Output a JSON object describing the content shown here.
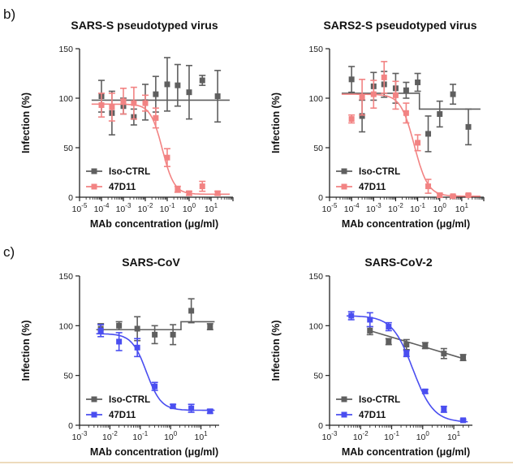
{
  "panel_letters": [
    "b)",
    "c)"
  ],
  "colors": {
    "iso": "#5f5f5f",
    "pseudo_47d11": "#f28383",
    "virus_47d11": "#4a4ef0",
    "bottom_rule": "#e7cfa6"
  },
  "chart_data": [
    {
      "type": "scatter",
      "title": "SARS-S pseudotyped virus",
      "xlabel": "MAb concentration (μg/ml)",
      "ylabel": "Infection (%)",
      "xscale": "log",
      "xlim_exp": [
        -5,
        2
      ],
      "ylim": [
        0,
        150
      ],
      "xticks_exp": [
        -5,
        -4,
        -3,
        -2,
        -1,
        0,
        1
      ],
      "xtick_labels": [
        "10-5",
        "10-4",
        "10-3",
        "10-2",
        "10-1",
        "100",
        "101"
      ],
      "yticks": [
        0,
        50,
        100,
        150
      ],
      "legend": [
        "Iso-CTRL",
        "47D11"
      ],
      "series": [
        {
          "name": "Iso-CTRL",
          "color": "#5f5f5f",
          "x": [
            0.0001,
            0.0003,
            0.001,
            0.003,
            0.01,
            0.03,
            0.1,
            0.3,
            1,
            4,
            20
          ],
          "y": [
            102,
            85,
            92,
            81,
            96,
            104,
            114,
            113,
            106,
            118,
            102
          ],
          "err": [
            16,
            22,
            8,
            8,
            18,
            18,
            27,
            21,
            27,
            5,
            26
          ],
          "fit": {
            "kind": "flat",
            "levels": [
              98
            ]
          }
        },
        {
          "name": "47D11",
          "color": "#f28383",
          "x": [
            0.0001,
            0.0003,
            0.001,
            0.003,
            0.01,
            0.03,
            0.1,
            0.3,
            1,
            4,
            20
          ],
          "y": [
            93,
            91,
            97,
            95,
            95,
            80,
            40,
            8,
            4,
            11,
            4
          ],
          "err": [
            12,
            14,
            13,
            16,
            8,
            10,
            9,
            3,
            2,
            5,
            2
          ],
          "fit": {
            "kind": "sigmoid",
            "top": 94,
            "bottom": 3,
            "ec50": 0.06,
            "hill": 1.6
          }
        }
      ]
    },
    {
      "type": "scatter",
      "title": "SARS2-S pseudotyped virus",
      "xlabel": "MAb concentration (μg/ml)",
      "ylabel": "Infection (%)",
      "xscale": "log",
      "xlim_exp": [
        -5,
        2
      ],
      "ylim": [
        0,
        150
      ],
      "xticks_exp": [
        -5,
        -4,
        -3,
        -2,
        -1,
        0,
        1
      ],
      "xtick_labels": [
        "10-5",
        "10-4",
        "10-3",
        "10-2",
        "10-1",
        "100",
        "101"
      ],
      "yticks": [
        0,
        50,
        100,
        150
      ],
      "legend": [
        "Iso-CTRL",
        "47D11"
      ],
      "series": [
        {
          "name": "Iso-CTRL",
          "color": "#5f5f5f",
          "x": [
            0.0001,
            0.0003,
            0.001,
            0.003,
            0.01,
            0.03,
            0.1,
            0.3,
            1,
            4,
            20
          ],
          "y": [
            119,
            82,
            112,
            114,
            110,
            108,
            116,
            64,
            84,
            104,
            71
          ],
          "err": [
            13,
            16,
            14,
            13,
            15,
            8,
            9,
            18,
            13,
            10,
            18
          ],
          "fit": {
            "kind": "step",
            "levels": [
              105,
              89
            ],
            "step_at": 0.12
          }
        },
        {
          "name": "47D11",
          "color": "#f28383",
          "x": [
            0.0001,
            0.0003,
            0.001,
            0.003,
            0.01,
            0.03,
            0.1,
            0.3,
            1,
            4,
            20
          ],
          "y": [
            79,
            101,
            104,
            121,
            103,
            85,
            55,
            11,
            2,
            1,
            2
          ],
          "err": [
            4,
            18,
            14,
            16,
            14,
            10,
            8,
            7,
            2,
            1,
            1
          ],
          "fit": {
            "kind": "sigmoid",
            "top": 104,
            "bottom": 1,
            "ec50": 0.07,
            "hill": 1.4
          }
        }
      ]
    },
    {
      "type": "scatter",
      "title": "SARS-CoV",
      "xlabel": "MAb concentration (μg/ml)",
      "ylabel": "Infection (%)",
      "xscale": "log",
      "xlim_exp": [
        -3,
        1.6
      ],
      "ylim": [
        0,
        150
      ],
      "xticks_exp": [
        -3,
        -2,
        -1,
        0,
        1
      ],
      "xtick_labels": [
        "10-3",
        "10-2",
        "10-1",
        "100",
        "101"
      ],
      "yticks": [
        0,
        50,
        100,
        150
      ],
      "legend": [
        "Iso-CTRL",
        "47D11"
      ],
      "series": [
        {
          "name": "Iso-CTRL",
          "color": "#5f5f5f",
          "x": [
            0.005,
            0.02,
            0.08,
            0.3,
            1.2,
            4.8,
            20
          ],
          "y": [
            97,
            100,
            97,
            91,
            91,
            115,
            99
          ],
          "err": [
            5,
            4,
            12,
            9,
            10,
            12,
            3
          ],
          "fit": {
            "kind": "step",
            "levels": [
              96,
              104
            ],
            "step_at": 2.2
          }
        },
        {
          "name": "47D11",
          "color": "#4a4ef0",
          "x": [
            0.005,
            0.02,
            0.08,
            0.3,
            1.2,
            4.8,
            20
          ],
          "y": [
            95,
            84,
            78,
            39,
            19,
            17,
            14
          ],
          "err": [
            6,
            9,
            9,
            4,
            2,
            4,
            2
          ],
          "fit": {
            "kind": "sigmoid",
            "top": 92,
            "bottom": 15,
            "ec50": 0.16,
            "hill": 1.8
          }
        }
      ]
    },
    {
      "type": "scatter",
      "title": "SARS-CoV-2",
      "xlabel": "MAb concentration (μg/ml)",
      "ylabel": "Infection (%)",
      "xscale": "log",
      "xlim_exp": [
        -3,
        1.6
      ],
      "ylim": [
        0,
        150
      ],
      "xticks_exp": [
        -3,
        -2,
        -1,
        0,
        1
      ],
      "xtick_labels": [
        "10-3",
        "10-2",
        "10-1",
        "100",
        "101"
      ],
      "yticks": [
        0,
        50,
        100,
        150
      ],
      "legend": [
        "Iso-CTRL",
        "47D11"
      ],
      "series": [
        {
          "name": "Iso-CTRL",
          "color": "#5f5f5f",
          "x": [
            0.02,
            0.08,
            0.3,
            1.2,
            4.8,
            20
          ],
          "y": [
            95,
            84,
            81,
            80,
            72,
            68
          ],
          "err": [
            4,
            3,
            5,
            3,
            5,
            3
          ],
          "fit": {
            "kind": "linear",
            "start": 95,
            "end": 67
          }
        },
        {
          "name": "47D11",
          "color": "#4a4ef0",
          "x": [
            0.005,
            0.02,
            0.08,
            0.3,
            1.2,
            4.8,
            20
          ],
          "y": [
            110,
            106,
            99,
            72,
            34,
            16,
            5
          ],
          "err": [
            4,
            7,
            4,
            3,
            2,
            3,
            1
          ],
          "fit": {
            "kind": "sigmoid",
            "top": 110,
            "bottom": 3,
            "ec50": 0.48,
            "hill": 1.3
          }
        }
      ]
    }
  ]
}
